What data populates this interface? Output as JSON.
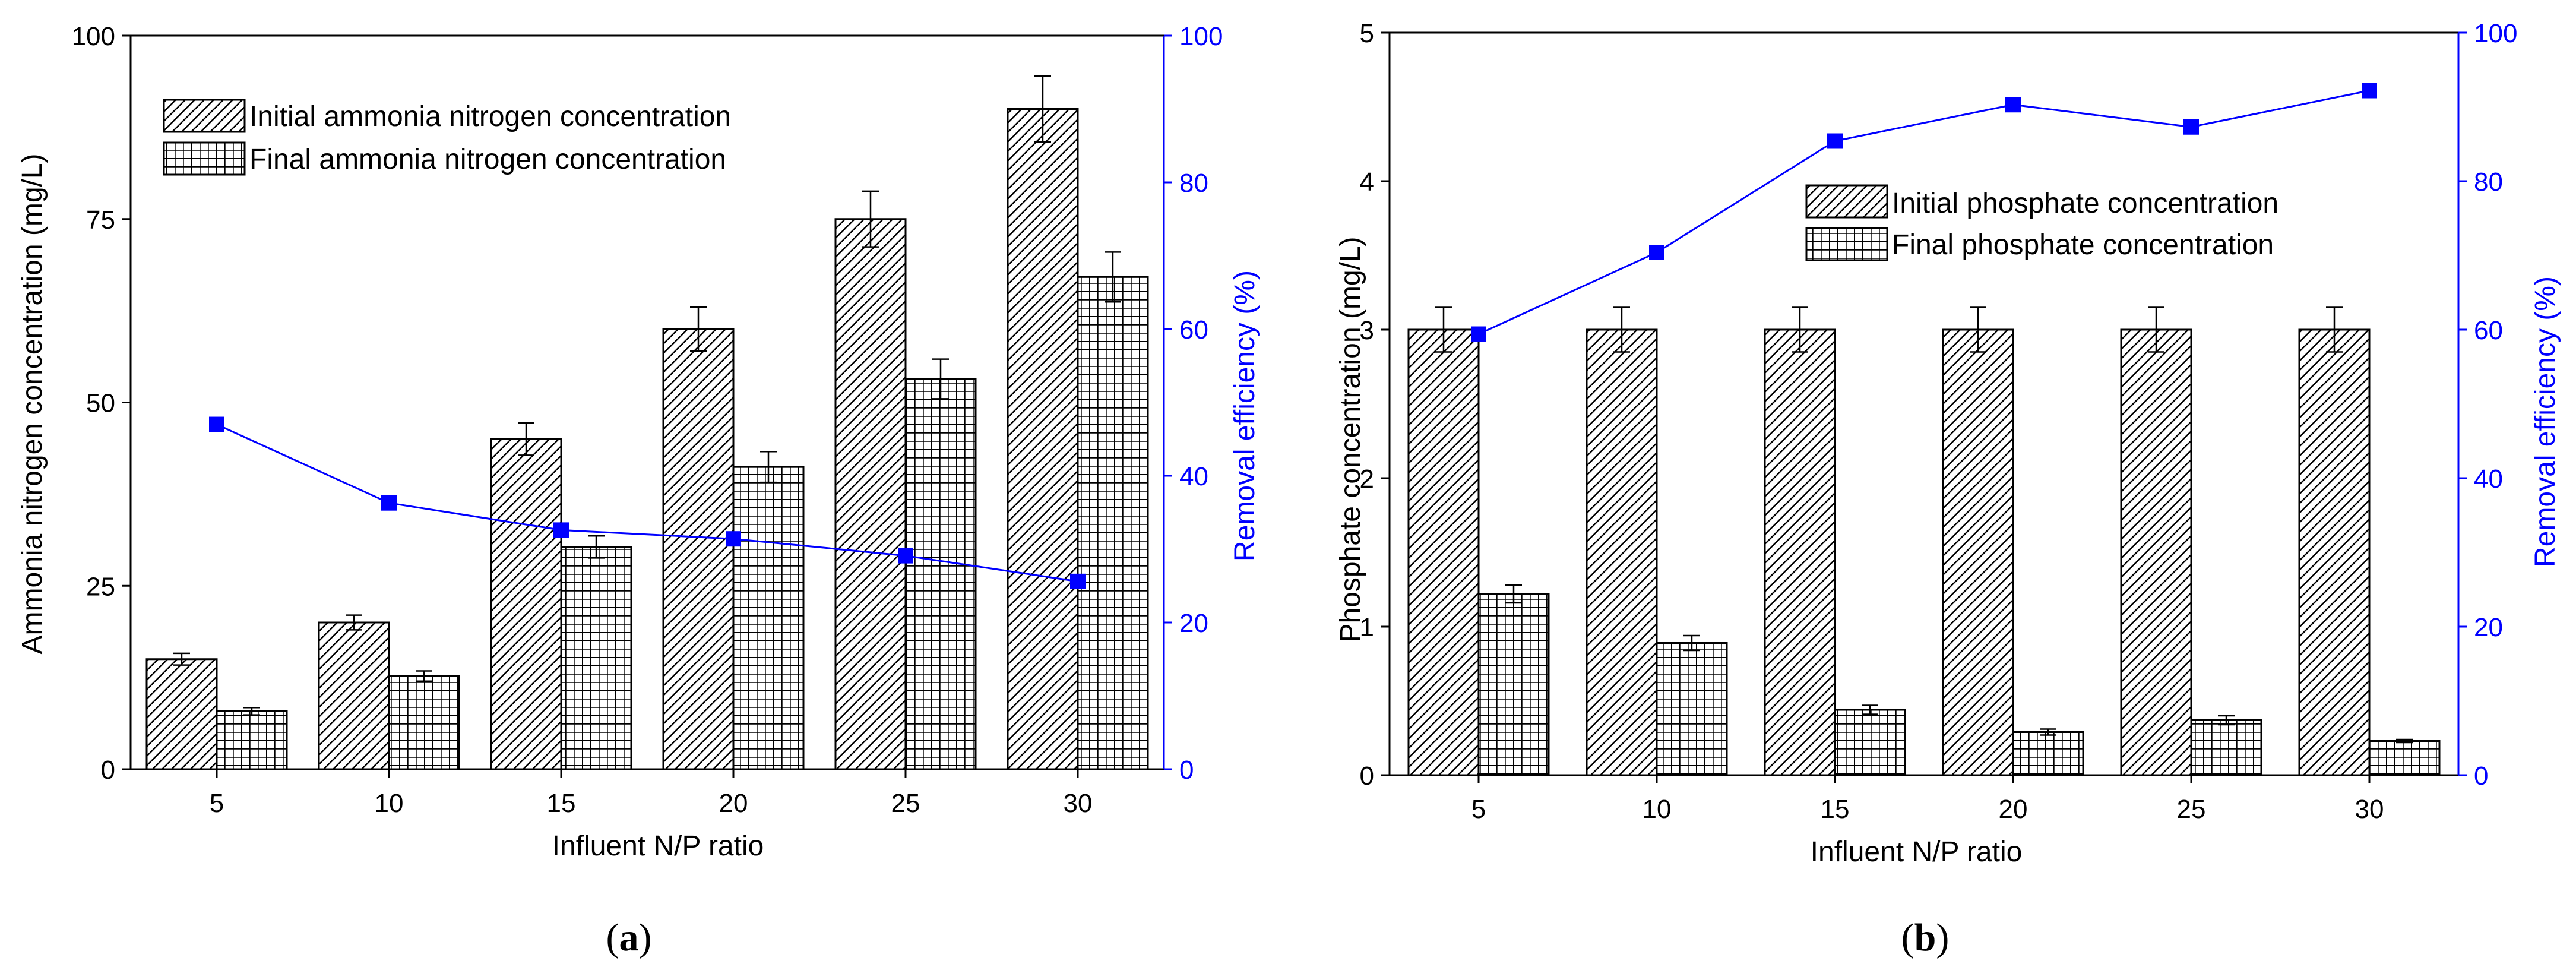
{
  "chart_data": [
    {
      "type": "bar",
      "panel_label": "(a)",
      "panel_letter": "a",
      "categories": [
        "5",
        "10",
        "15",
        "20",
        "25",
        "30"
      ],
      "xlabel": "Influent N/P ratio",
      "ylabel": "Ammonia nitrogen concentration (mg/L)",
      "ylim": [
        0,
        100
      ],
      "yticks": [
        0,
        25,
        50,
        75,
        100
      ],
      "y2label": "Removal efficiency (%)",
      "y2lim": [
        0,
        100
      ],
      "y2ticks": [
        0,
        20,
        40,
        60,
        80,
        100
      ],
      "legend_position": "top-left",
      "series": [
        {
          "name": "Initial ammonia nitrogen concentration",
          "pattern": "diagonal-hatch",
          "values": [
            15,
            20,
            45,
            60,
            75,
            90
          ],
          "errors": [
            0.8,
            1.0,
            2.2,
            3.0,
            3.8,
            4.5
          ]
        },
        {
          "name": "Final ammonia nitrogen concentration",
          "pattern": "grid-hatch",
          "values": [
            7.9,
            12.7,
            30.3,
            41.2,
            53.2,
            67.1
          ],
          "errors": [
            0.5,
            0.7,
            1.5,
            2.1,
            2.7,
            3.4
          ]
        },
        {
          "name": "Removal efficiency",
          "axis": "right",
          "color": "#0000ff",
          "marker": "square",
          "values": [
            47.0,
            36.3,
            32.6,
            31.4,
            29.1,
            25.6
          ]
        }
      ]
    },
    {
      "type": "bar",
      "panel_label": "(b)",
      "panel_letter": "b",
      "categories": [
        "5",
        "10",
        "15",
        "20",
        "25",
        "30"
      ],
      "xlabel": "Influent N/P ratio",
      "ylabel": "Phosphate concentration (mg/L)",
      "ylim": [
        0,
        5
      ],
      "yticks": [
        0,
        1,
        2,
        3,
        4,
        5
      ],
      "y2label": "Removal efficiency (%)",
      "y2lim": [
        0,
        100
      ],
      "y2ticks": [
        0,
        20,
        40,
        60,
        80,
        100
      ],
      "legend_position": "upper-center",
      "series": [
        {
          "name": "Initial phosphate  concentration",
          "pattern": "diagonal-hatch",
          "values": [
            3,
            3,
            3,
            3,
            3,
            3
          ],
          "errors": [
            0.15,
            0.15,
            0.15,
            0.15,
            0.15,
            0.15
          ]
        },
        {
          "name": "Final phosphate  concentration",
          "pattern": "grid-hatch",
          "values": [
            1.22,
            0.89,
            0.44,
            0.29,
            0.37,
            0.23
          ],
          "errors": [
            0.06,
            0.05,
            0.03,
            0.02,
            0.03,
            0.01
          ]
        },
        {
          "name": "Removal efficiency",
          "axis": "right",
          "color": "#0000ff",
          "marker": "square",
          "values": [
            59.4,
            70.4,
            85.4,
            90.3,
            87.3,
            92.2
          ]
        }
      ]
    }
  ]
}
